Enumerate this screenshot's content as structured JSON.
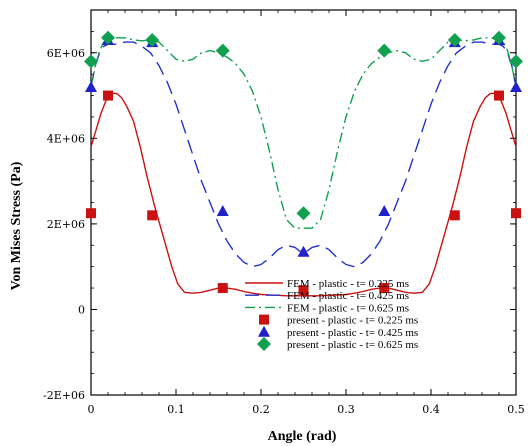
{
  "chart_data": {
    "type": "line",
    "xlabel": "Angle (rad)",
    "ylabel": "Von Mises Stress (Pa)",
    "xlim": [
      0,
      0.5
    ],
    "ylim": [
      -2000000,
      7000000
    ],
    "x_ticks": [
      0,
      0.1,
      0.2,
      0.3,
      0.4,
      0.5
    ],
    "x_tick_labels": [
      "0",
      "0.1",
      "0.2",
      "0.3",
      "0.4",
      "0.5"
    ],
    "y_ticks": [
      -2000000,
      0,
      2000000,
      4000000,
      6000000
    ],
    "y_tick_labels": [
      "-2E+06",
      "0",
      "2E+06",
      "4E+06",
      "6E+06"
    ],
    "grid": false,
    "legend_position": "bottom-right",
    "series": [
      {
        "name": "FEM - plastic - t= 0.225 ms",
        "kind": "line",
        "style": "solid",
        "color": "#cc1111",
        "x": [
          0,
          0.006,
          0.012,
          0.018,
          0.024,
          0.03,
          0.036,
          0.042,
          0.05,
          0.058,
          0.066,
          0.075,
          0.085,
          0.095,
          0.102,
          0.11,
          0.12,
          0.13,
          0.14,
          0.15,
          0.16,
          0.17,
          0.18,
          0.19,
          0.2,
          0.21,
          0.22,
          0.23,
          0.25,
          0.27,
          0.28,
          0.29,
          0.3,
          0.31,
          0.32,
          0.33,
          0.34,
          0.35,
          0.36,
          0.37,
          0.38,
          0.39,
          0.398,
          0.405,
          0.415,
          0.425,
          0.434,
          0.442,
          0.45,
          0.458,
          0.464,
          0.47,
          0.476,
          0.482,
          0.488,
          0.494,
          0.5
        ],
        "y": [
          3800000,
          4200000,
          4600000,
          4900000,
          5050000,
          5050000,
          4950000,
          4750000,
          4400000,
          3800000,
          3100000,
          2400000,
          1700000,
          1000000,
          600000,
          400000,
          380000,
          400000,
          450000,
          500000,
          500000,
          470000,
          420000,
          380000,
          350000,
          340000,
          330000,
          320000,
          320000,
          320000,
          330000,
          340000,
          350000,
          380000,
          420000,
          470000,
          500000,
          500000,
          450000,
          400000,
          380000,
          400000,
          600000,
          1000000,
          1700000,
          2400000,
          3100000,
          3800000,
          4400000,
          4750000,
          4950000,
          5050000,
          5050000,
          4900000,
          4600000,
          4200000,
          3800000
        ]
      },
      {
        "name": "FEM - plastic - t= 0.425 ms",
        "kind": "line",
        "style": "dashed",
        "color": "#2233cc",
        "x": [
          0,
          0.005,
          0.01,
          0.015,
          0.02,
          0.03,
          0.04,
          0.05,
          0.06,
          0.07,
          0.08,
          0.09,
          0.1,
          0.11,
          0.12,
          0.13,
          0.14,
          0.15,
          0.16,
          0.17,
          0.18,
          0.19,
          0.2,
          0.21,
          0.22,
          0.23,
          0.24,
          0.25,
          0.26,
          0.27,
          0.28,
          0.29,
          0.3,
          0.31,
          0.32,
          0.33,
          0.34,
          0.35,
          0.36,
          0.37,
          0.38,
          0.39,
          0.4,
          0.41,
          0.42,
          0.43,
          0.44,
          0.45,
          0.46,
          0.47,
          0.48,
          0.485,
          0.49,
          0.495,
          0.5
        ],
        "y": [
          5200000,
          5700000,
          6000000,
          6150000,
          6200000,
          6200000,
          6250000,
          6250000,
          6150000,
          6000000,
          5700000,
          5300000,
          4800000,
          4200000,
          3600000,
          3000000,
          2500000,
          2000000,
          1600000,
          1300000,
          1100000,
          1000000,
          1050000,
          1200000,
          1400000,
          1500000,
          1450000,
          1300000,
          1450000,
          1500000,
          1400000,
          1200000,
          1050000,
          1000000,
          1100000,
          1300000,
          1600000,
          2000000,
          2500000,
          3000000,
          3600000,
          4200000,
          4800000,
          5300000,
          5700000,
          6000000,
          6150000,
          6250000,
          6250000,
          6200000,
          6200000,
          6150000,
          6000000,
          5700000,
          5200000
        ]
      },
      {
        "name": "FEM - plastic - t= 0.625 ms",
        "kind": "line",
        "style": "dashdot",
        "color": "#11a050",
        "x": [
          0,
          0.005,
          0.01,
          0.015,
          0.02,
          0.03,
          0.04,
          0.05,
          0.06,
          0.07,
          0.08,
          0.09,
          0.1,
          0.11,
          0.12,
          0.13,
          0.14,
          0.15,
          0.16,
          0.17,
          0.18,
          0.19,
          0.2,
          0.21,
          0.22,
          0.23,
          0.24,
          0.25,
          0.26,
          0.27,
          0.28,
          0.29,
          0.3,
          0.31,
          0.32,
          0.33,
          0.34,
          0.35,
          0.36,
          0.37,
          0.38,
          0.39,
          0.4,
          0.41,
          0.42,
          0.43,
          0.44,
          0.45,
          0.46,
          0.47,
          0.48,
          0.485,
          0.49,
          0.495,
          0.5
        ],
        "y": [
          5200000,
          5700000,
          6050000,
          6250000,
          6300000,
          6350000,
          6350000,
          6300000,
          6280000,
          6300000,
          6250000,
          6050000,
          5850000,
          5800000,
          5850000,
          6000000,
          6050000,
          6000000,
          5900000,
          5750000,
          5500000,
          5100000,
          4500000,
          3700000,
          2800000,
          2100000,
          1900000,
          1900000,
          1900000,
          2100000,
          2800000,
          3700000,
          4500000,
          5100000,
          5500000,
          5750000,
          5900000,
          6000000,
          6050000,
          6000000,
          5850000,
          5800000,
          5850000,
          6050000,
          6250000,
          6300000,
          6280000,
          6300000,
          6350000,
          6350000,
          6300000,
          6250000,
          6050000,
          5700000,
          5200000
        ]
      },
      {
        "name": "present - plastic - t= 0.225 ms",
        "kind": "marker",
        "marker": "square",
        "color": "#cc1111",
        "x": [
          0,
          0.02,
          0.072,
          0.155,
          0.25,
          0.345,
          0.428,
          0.48,
          0.5
        ],
        "y": [
          2250000,
          5000000,
          2200000,
          500000,
          450000,
          500000,
          2200000,
          5000000,
          2250000
        ]
      },
      {
        "name": "present - plastic - t= 0.425 ms",
        "kind": "marker",
        "marker": "triangle",
        "color": "#2222cc",
        "x": [
          0,
          0.02,
          0.072,
          0.155,
          0.25,
          0.345,
          0.428,
          0.48,
          0.5
        ],
        "y": [
          5200000,
          6300000,
          6250000,
          2300000,
          1350000,
          2300000,
          6250000,
          6300000,
          5200000
        ]
      },
      {
        "name": "present - plastic - t= 0.625 ms",
        "kind": "marker",
        "marker": "diamond",
        "color": "#11a050",
        "x": [
          0,
          0.02,
          0.072,
          0.155,
          0.25,
          0.345,
          0.428,
          0.48,
          0.5
        ],
        "y": [
          5800000,
          6350000,
          6300000,
          6050000,
          2250000,
          6050000,
          6300000,
          6350000,
          5800000
        ]
      }
    ]
  }
}
